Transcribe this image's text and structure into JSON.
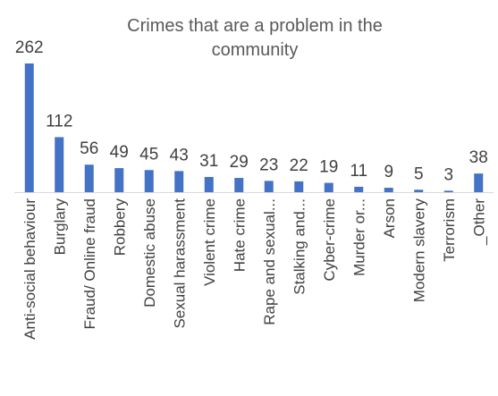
{
  "chart_data": {
    "type": "bar",
    "title_lines": [
      "Crimes that are a problem in the",
      "community"
    ],
    "categories": [
      "Anti-social behaviour",
      "Burglary",
      "Fraud/ Online fraud",
      "Robbery",
      "Domestic abuse",
      "Sexual harassment",
      "Violent crime",
      "Hate crime",
      "Rape and sexual...",
      "Stalking and...",
      "Cyber-crime",
      "Murder or...",
      "Arson",
      "Modern slavery",
      "Terrorism",
      "_Other"
    ],
    "values": [
      262,
      112,
      56,
      49,
      45,
      43,
      31,
      29,
      23,
      22,
      19,
      11,
      9,
      5,
      3,
      38
    ],
    "xlabel": "",
    "ylabel": "",
    "ylim": [
      0,
      262
    ],
    "grid": false,
    "legend": "none",
    "colors": {
      "bar": "#4472C4",
      "axis": "#D9D9D9",
      "text": "#404040",
      "title": "#595959"
    }
  }
}
